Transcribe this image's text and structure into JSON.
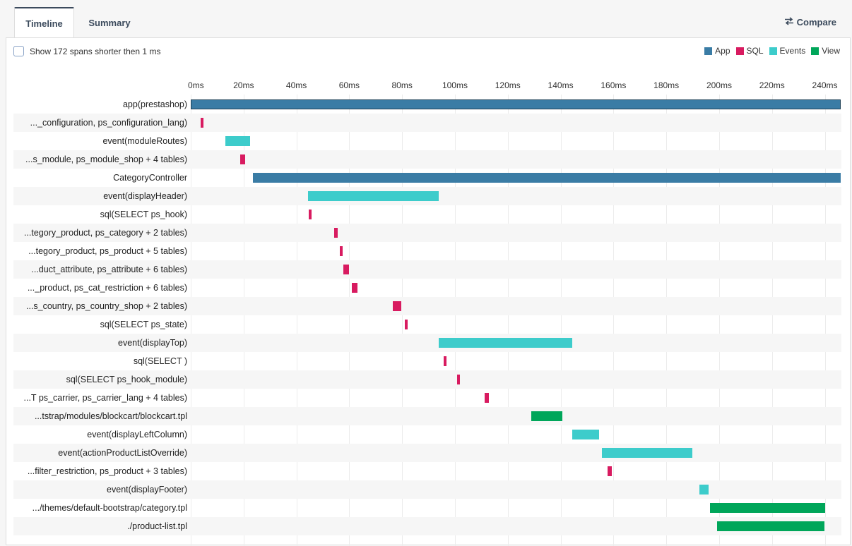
{
  "tabs": {
    "timeline": "Timeline",
    "summary": "Summary"
  },
  "compare_label": "Compare",
  "filter_label": "Show 172 spans shorter then 1 ms",
  "legend": [
    {
      "label": "App",
      "color": "#3a7ca5"
    },
    {
      "label": "SQL",
      "color": "#d81b60"
    },
    {
      "label": "Events",
      "color": "#3dcccb"
    },
    {
      "label": "View",
      "color": "#00a65a"
    }
  ],
  "axis_ticks": [
    "0ms",
    "20ms",
    "40ms",
    "60ms",
    "80ms",
    "100ms",
    "120ms",
    "140ms",
    "160ms",
    "180ms",
    "200ms",
    "220ms",
    "240ms"
  ],
  "axis_max_ms": 246,
  "spans": [
    {
      "label": "app(prestashop)",
      "type": "app",
      "start": 0,
      "end": 246,
      "outline": true
    },
    {
      "label": "..._configuration, ps_configuration_lang)",
      "type": "sql",
      "start": 3.7,
      "end": 4.9
    },
    {
      "label": "event(moduleRoutes)",
      "type": "events",
      "start": 13.0,
      "end": 22.4
    },
    {
      "label": "...s_module, ps_module_shop + 4 tables)",
      "type": "sql",
      "start": 18.7,
      "end": 20.5
    },
    {
      "label": "CategoryController",
      "type": "app",
      "start": 23.5,
      "end": 246
    },
    {
      "label": "event(displayHeader)",
      "type": "events",
      "start": 44.4,
      "end": 93.8
    },
    {
      "label": "sql(SELECT ps_hook)",
      "type": "sql",
      "start": 44.6,
      "end": 45.7
    },
    {
      "label": "...tegory_product, ps_category + 2 tables)",
      "type": "sql",
      "start": 54.3,
      "end": 55.6
    },
    {
      "label": "...tegory_product, ps_product + 5 tables)",
      "type": "sql",
      "start": 56.3,
      "end": 57.6
    },
    {
      "label": "...duct_attribute, ps_attribute + 6 tables)",
      "type": "sql",
      "start": 57.8,
      "end": 60.0
    },
    {
      "label": "..._product, ps_cat_restriction + 6 tables)",
      "type": "sql",
      "start": 61.0,
      "end": 63.2
    },
    {
      "label": "...s_country, ps_country_shop + 2 tables)",
      "type": "sql",
      "start": 76.6,
      "end": 79.6
    },
    {
      "label": "sql(SELECT ps_state)",
      "type": "sql",
      "start": 80.9,
      "end": 82.0
    },
    {
      "label": "event(displayTop)",
      "type": "events",
      "start": 93.8,
      "end": 144.3
    },
    {
      "label": "sql(SELECT )",
      "type": "sql",
      "start": 95.8,
      "end": 96.9
    },
    {
      "label": "sql(SELECT ps_hook_module)",
      "type": "sql",
      "start": 100.7,
      "end": 101.9
    },
    {
      "label": "...T ps_carrier, ps_carrier_lang + 4 tables)",
      "type": "sql",
      "start": 111.2,
      "end": 112.8
    },
    {
      "label": "...tstrap/modules/blockcart/blockcart.tpl",
      "type": "view",
      "start": 128.8,
      "end": 140.6
    },
    {
      "label": "event(displayLeftColumn)",
      "type": "events",
      "start": 144.3,
      "end": 154.5
    },
    {
      "label": "event(actionProductListOverride)",
      "type": "events",
      "start": 155.7,
      "end": 189.8
    },
    {
      "label": "...filter_restriction, ps_product + 3 tables)",
      "type": "sql",
      "start": 157.8,
      "end": 159.4
    },
    {
      "label": "event(displayFooter)",
      "type": "events",
      "start": 192.4,
      "end": 196.1
    },
    {
      "label": ".../themes/default-bootstrap/category.tpl",
      "type": "view",
      "start": 196.4,
      "end": 240.2
    },
    {
      "label": "./product-list.tpl",
      "type": "view",
      "start": 199.3,
      "end": 239.9
    }
  ]
}
